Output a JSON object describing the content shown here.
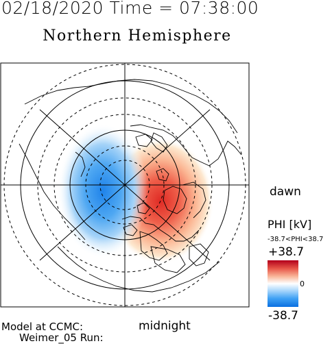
{
  "header": {
    "time_text": "02/18/2020 Time = 07:38:00"
  },
  "title": "Northern Hemisphere",
  "labels": {
    "dawn": "dawn",
    "midnight": "midnight",
    "model": "Model at CCMC:",
    "run": "Weimer_05 Run:"
  },
  "colorbar": {
    "title": "PHI [kV]",
    "range_text": "-38.7<PHI<38.7",
    "max": "+38.7",
    "min": "-38.7",
    "zero": "0"
  },
  "colors": {
    "positive": "#e4302a",
    "negative": "#1a7fe6",
    "zero": "#ffffff"
  }
}
